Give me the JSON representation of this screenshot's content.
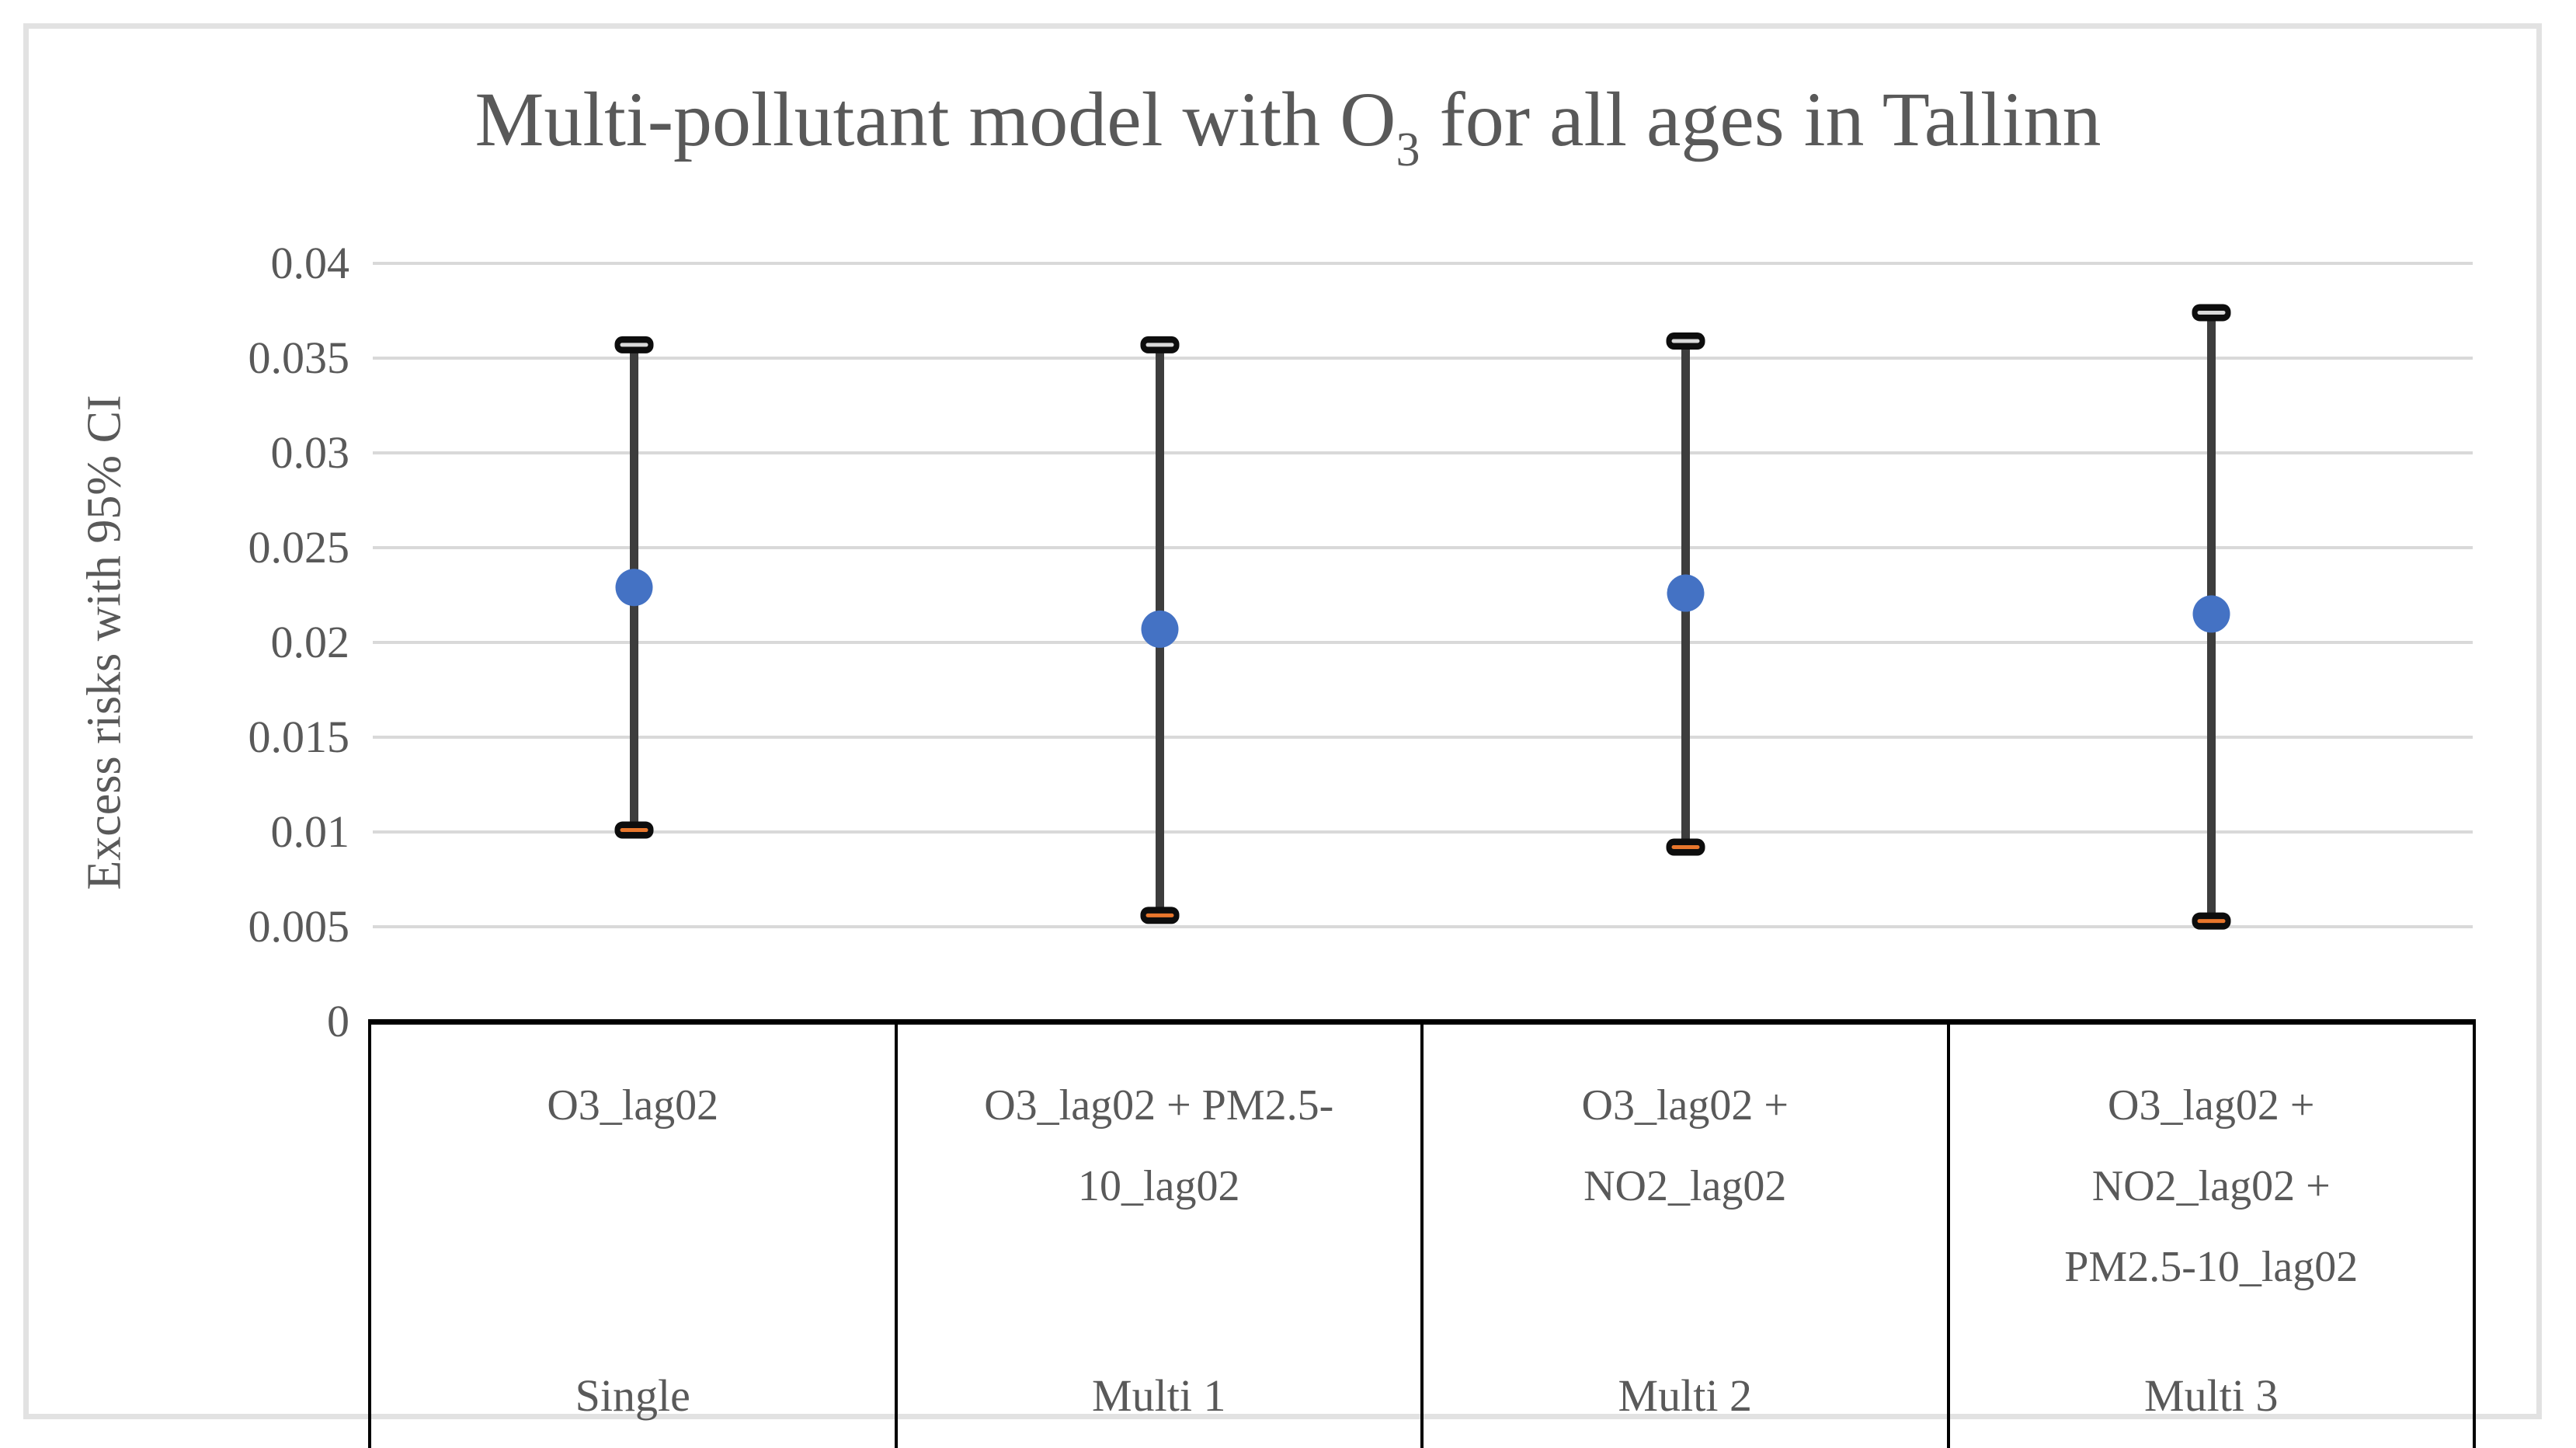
{
  "title": {
    "prefix": "Multi-pollutant model with O",
    "subscript": "3",
    "suffix": " for all ages in Tallinn"
  },
  "chart_data": {
    "type": "scatter",
    "subtype": "point-estimate-with-95ci-error-bars",
    "title": "Multi-pollutant model with O3 for all ages in Tallinn",
    "ylabel": "Excess risks with 95% CI",
    "xlabel": "",
    "ylim": [
      0,
      0.04
    ],
    "ytick_labels": [
      "0",
      "0.005",
      "0.01",
      "0.015",
      "0.02",
      "0.025",
      "0.03",
      "0.035",
      "0.04"
    ],
    "yticks": [
      0,
      0.005,
      0.01,
      0.015,
      0.02,
      0.025,
      0.03,
      0.035,
      0.04
    ],
    "grid": true,
    "legend": "none",
    "categories": [
      {
        "pollutants": "O3_lag02",
        "pollutant_lines": [
          "O3_lag02"
        ],
        "model": "Single"
      },
      {
        "pollutants": "O3_lag02 + PM2.5-10_lag02",
        "pollutant_lines": [
          "O3_lag02 + PM2.5-",
          "10_lag02"
        ],
        "model": "Multi 1"
      },
      {
        "pollutants": "O3_lag02 + NO2_lag02",
        "pollutant_lines": [
          "O3_lag02 +",
          "NO2_lag02"
        ],
        "model": "Multi 2"
      },
      {
        "pollutants": "O3_lag02 + NO2_lag02 + PM2.5-10_lag02",
        "pollutant_lines": [
          "O3_lag02 +",
          "NO2_lag02 +",
          "PM2.5-10_lag02"
        ],
        "model": "Multi 3"
      }
    ],
    "series": [
      {
        "name": "Excess risk point estimate",
        "values": [
          0.0229,
          0.0207,
          0.0226,
          0.0215
        ],
        "ci_low": [
          0.0101,
          0.0056,
          0.0092,
          0.0053
        ],
        "ci_high": [
          0.0357,
          0.0357,
          0.0359,
          0.0374
        ]
      }
    ],
    "colors": {
      "marker": "#4472C4",
      "whisker": "#3d3d3d",
      "cap_fill": "#0d0d0d",
      "cap_inner_top": "#d9d9d9",
      "cap_inner_bottom": "#E8762C",
      "gridline": "#d9d9d9",
      "text": "#595959",
      "table_border": "#000000"
    }
  }
}
